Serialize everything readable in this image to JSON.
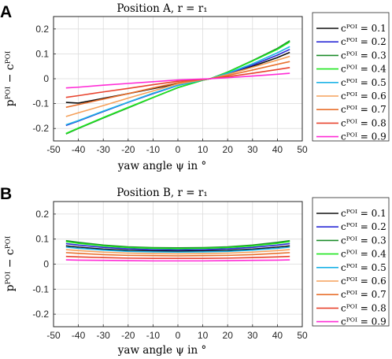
{
  "colors": {
    "0.1": "#111111",
    "0.2": "#2b2bd6",
    "0.3": "#1c8c2a",
    "0.4": "#1fe61f",
    "0.5": "#1fb3e6",
    "0.6": "#f5a05a",
    "0.7": "#e8702e",
    "0.8": "#e8432e",
    "0.9": "#ff2bd6"
  },
  "chart_data": [
    {
      "type": "line",
      "panel_label": "A",
      "title": "Position A, r = r₁",
      "xlabel": "yaw angle ψ in °",
      "ylabel": "pᴾᴼᴵ − cᴾᴼᴵ",
      "xlim": [
        -50,
        50
      ],
      "ylim": [
        -0.25,
        0.25
      ],
      "xticks": [
        "-50",
        "-40",
        "-30",
        "-20",
        "-10",
        "0",
        "10",
        "20",
        "30",
        "40",
        "50"
      ],
      "yticks": [
        "-0.2",
        "-0.1",
        "0",
        "0.1",
        "0.2"
      ],
      "grid": true,
      "legend_position": "right",
      "x": [
        -45,
        -40,
        -30,
        -20,
        -10,
        0,
        10,
        13,
        20,
        30,
        40,
        45
      ],
      "series": [
        {
          "name": "cᴾᴼᴵ = 0.1",
          "key": "0.1",
          "values": [
            -0.095,
            -0.098,
            -0.079,
            -0.06,
            -0.04,
            -0.02,
            -0.004,
            0.0,
            0.02,
            0.05,
            0.085,
            0.106
          ]
        },
        {
          "name": "cᴾᴼᴵ = 0.2",
          "key": "0.2",
          "values": [
            -0.188,
            -0.17,
            -0.132,
            -0.095,
            -0.06,
            -0.027,
            -0.005,
            0.0,
            0.02,
            0.055,
            0.095,
            0.118
          ]
        },
        {
          "name": "cᴾᴼᴵ = 0.3",
          "key": "0.3",
          "values": [
            -0.222,
            -0.2,
            -0.158,
            -0.117,
            -0.076,
            -0.036,
            -0.006,
            0.0,
            0.027,
            0.073,
            0.122,
            0.153
          ]
        },
        {
          "name": "cᴾᴼᴵ = 0.4",
          "key": "0.4",
          "values": [
            -0.22,
            -0.198,
            -0.156,
            -0.115,
            -0.075,
            -0.035,
            -0.006,
            0.0,
            0.026,
            0.071,
            0.118,
            0.148
          ]
        },
        {
          "name": "cᴾᴼᴵ = 0.5",
          "key": "0.5",
          "values": [
            -0.185,
            -0.168,
            -0.13,
            -0.094,
            -0.058,
            -0.026,
            -0.005,
            0.0,
            0.022,
            0.06,
            0.104,
            0.129
          ]
        },
        {
          "name": "cᴾᴼᴵ = 0.6",
          "key": "0.6",
          "values": [
            -0.152,
            -0.137,
            -0.108,
            -0.078,
            -0.049,
            -0.021,
            -0.004,
            0.0,
            0.017,
            0.046,
            0.075,
            0.09
          ]
        },
        {
          "name": "cᴾᴼᴵ = 0.7",
          "key": "0.7",
          "values": [
            -0.115,
            -0.104,
            -0.082,
            -0.06,
            -0.037,
            -0.016,
            -0.003,
            0.0,
            0.013,
            0.035,
            0.058,
            0.069
          ]
        },
        {
          "name": "cᴾᴼᴵ = 0.8",
          "key": "0.8",
          "values": [
            -0.075,
            -0.068,
            -0.053,
            -0.039,
            -0.024,
            -0.01,
            -0.002,
            0.0,
            0.008,
            0.022,
            0.037,
            0.045
          ]
        },
        {
          "name": "cᴾᴼᴵ = 0.9",
          "key": "0.9",
          "values": [
            -0.037,
            -0.034,
            -0.026,
            -0.019,
            -0.012,
            -0.005,
            -0.001,
            0.0,
            0.004,
            0.011,
            0.018,
            0.022
          ]
        }
      ]
    },
    {
      "type": "line",
      "panel_label": "B",
      "title": "Position B, r = r₁",
      "xlabel": "yaw angle ψ in °",
      "ylabel": "pᴾᴼᴵ − cᴾᴼᴵ",
      "xlim": [
        -50,
        50
      ],
      "ylim": [
        -0.25,
        0.25
      ],
      "xticks": [
        "-50",
        "-40",
        "-30",
        "-20",
        "-10",
        "0",
        "10",
        "20",
        "30",
        "40",
        "50"
      ],
      "yticks": [
        "-0.2",
        "-0.1",
        "0",
        "0.1",
        "0.2"
      ],
      "grid": true,
      "legend_position": "right",
      "x": [
        -45,
        -40,
        -30,
        -20,
        -10,
        0,
        10,
        20,
        30,
        40,
        45
      ],
      "series": [
        {
          "name": "cᴾᴼᴵ = 0.1",
          "key": "0.1",
          "values": [
            0.073,
            0.068,
            0.06,
            0.055,
            0.053,
            0.052,
            0.053,
            0.055,
            0.06,
            0.068,
            0.073
          ]
        },
        {
          "name": "cᴾᴼᴵ = 0.2",
          "key": "0.2",
          "values": [
            0.082,
            0.076,
            0.067,
            0.061,
            0.058,
            0.057,
            0.058,
            0.061,
            0.067,
            0.076,
            0.082
          ]
        },
        {
          "name": "cᴾᴼᴵ = 0.3",
          "key": "0.3",
          "values": [
            0.094,
            0.087,
            0.076,
            0.069,
            0.066,
            0.065,
            0.066,
            0.069,
            0.076,
            0.087,
            0.094
          ]
        },
        {
          "name": "cᴾᴼᴵ = 0.4",
          "key": "0.4",
          "values": [
            0.09,
            0.083,
            0.073,
            0.066,
            0.063,
            0.062,
            0.063,
            0.066,
            0.073,
            0.083,
            0.09
          ]
        },
        {
          "name": "cᴾᴼᴵ = 0.5",
          "key": "0.5",
          "values": [
            0.068,
            0.063,
            0.056,
            0.051,
            0.049,
            0.048,
            0.049,
            0.051,
            0.056,
            0.063,
            0.068
          ]
        },
        {
          "name": "cᴾᴼᴵ = 0.6",
          "key": "0.6",
          "values": [
            0.058,
            0.054,
            0.048,
            0.044,
            0.042,
            0.041,
            0.042,
            0.044,
            0.048,
            0.054,
            0.058
          ]
        },
        {
          "name": "cᴾᴼᴵ = 0.7",
          "key": "0.7",
          "values": [
            0.046,
            0.043,
            0.038,
            0.035,
            0.034,
            0.033,
            0.034,
            0.035,
            0.038,
            0.043,
            0.046
          ]
        },
        {
          "name": "cᴾᴼᴵ = 0.8",
          "key": "0.8",
          "values": [
            0.031,
            0.029,
            0.026,
            0.024,
            0.023,
            0.023,
            0.023,
            0.024,
            0.026,
            0.029,
            0.031
          ]
        },
        {
          "name": "cᴾᴼᴵ = 0.9",
          "key": "0.9",
          "values": [
            0.017,
            0.016,
            0.015,
            0.014,
            0.013,
            0.013,
            0.013,
            0.014,
            0.015,
            0.016,
            0.017
          ]
        }
      ]
    }
  ]
}
